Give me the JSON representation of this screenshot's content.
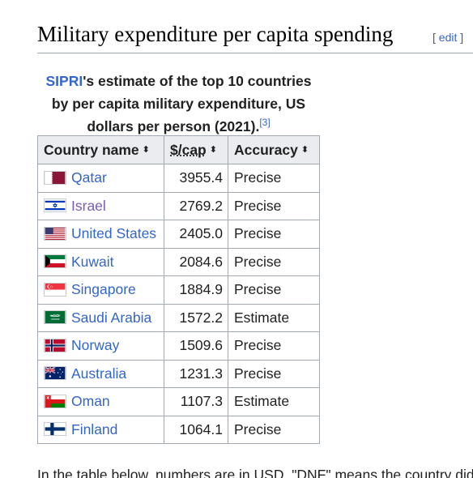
{
  "section": {
    "title": "Military expenditure per capita spending",
    "edit_open": "[ ",
    "edit_label": "edit",
    "edit_close": " ]"
  },
  "caption": {
    "link": "SIPRI",
    "text": "'s estimate of the top 10 countries by per capita military expenditure, US dollars per person (2021).",
    "ref": "[3]"
  },
  "table": {
    "headers": {
      "country": "Country name",
      "per_cap": "$/cap",
      "accuracy": "Accuracy",
      "sort_glyph": "⬍"
    },
    "rows": [
      {
        "country": "Qatar",
        "value": "3955.4",
        "accuracy": "Precise",
        "flag": "qatar-flag-icon"
      },
      {
        "country": "Israel",
        "value": "2769.2",
        "accuracy": "Precise",
        "flag": "israel-flag-icon"
      },
      {
        "country": "United States",
        "value": "2405.0",
        "accuracy": "Precise",
        "flag": "united-states-flag-icon"
      },
      {
        "country": "Kuwait",
        "value": "2084.6",
        "accuracy": "Precise",
        "flag": "kuwait-flag-icon"
      },
      {
        "country": "Singapore",
        "value": "1884.9",
        "accuracy": "Precise",
        "flag": "singapore-flag-icon"
      },
      {
        "country": "Saudi Arabia",
        "value": "1572.2",
        "accuracy": "Estimate",
        "flag": "saudi-arabia-flag-icon"
      },
      {
        "country": "Norway",
        "value": "1509.6",
        "accuracy": "Precise",
        "flag": "norway-flag-icon"
      },
      {
        "country": "Australia",
        "value": "1231.3",
        "accuracy": "Precise",
        "flag": "australia-flag-icon"
      },
      {
        "country": "Oman",
        "value": "1107.3",
        "accuracy": "Estimate",
        "flag": "oman-flag-icon"
      },
      {
        "country": "Finland",
        "value": "1064.1",
        "accuracy": "Precise",
        "flag": "finland-flag-icon"
      }
    ]
  },
  "footer": {
    "text": "In the table below, numbers are in USD. \"DNF\" means the country did"
  },
  "colors": {
    "link": "#3366cc",
    "visited_link": "#795cb2",
    "header_bg": "#eaecf0",
    "border": "#a2a9b1"
  }
}
